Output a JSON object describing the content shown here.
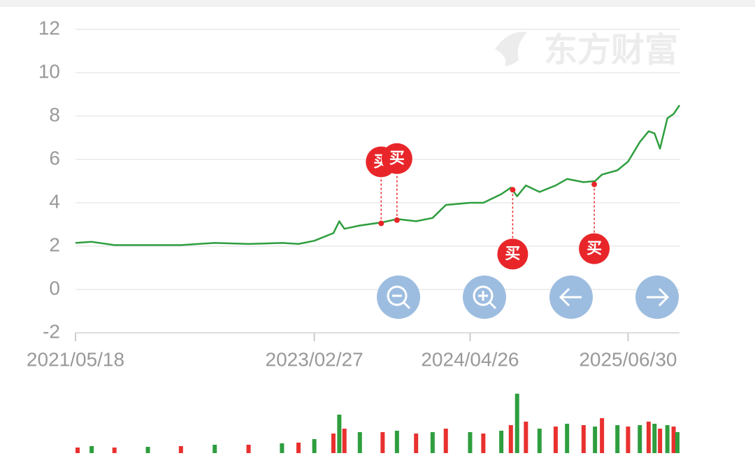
{
  "chart_data": [
    {
      "type": "line",
      "watermark": "东方财富",
      "x": [
        "2021/05/18",
        "2021/07/01",
        "2021/09/01",
        "2021/12/01",
        "2022/03/01",
        "2022/06/01",
        "2022/09/01",
        "2022/12/01",
        "2023/01/15",
        "2023/02/27",
        "2023/04/20",
        "2023/05/06",
        "2023/05/20",
        "2023/07/01",
        "2023/09/01",
        "2023/10/10",
        "2023/12/01",
        "2024/01/15",
        "2024/02/20",
        "2024/04/26",
        "2024/06/01",
        "2024/07/20",
        "2024/08/15",
        "2024/09/01",
        "2024/09/25",
        "2024/11/01",
        "2024/12/15",
        "2025/01/15",
        "2025/03/01",
        "2025/04/01",
        "2025/04/20",
        "2025/06/01",
        "2025/06/30",
        "2025/08/01",
        "2025/08/25",
        "2025/09/10",
        "2025/09/25",
        "2025/10/15",
        "2025/11/01",
        "2025/11/17"
      ],
      "series": [
        {
          "color": "#2e9e3e",
          "values": [
            2.15,
            2.2,
            2.05,
            2.05,
            2.05,
            2.15,
            2.1,
            2.15,
            2.1,
            2.25,
            2.6,
            3.15,
            2.8,
            2.95,
            3.1,
            3.25,
            3.15,
            3.3,
            3.9,
            4.0,
            4.0,
            4.4,
            4.7,
            4.3,
            4.8,
            4.5,
            4.8,
            5.1,
            4.95,
            5.0,
            5.3,
            5.5,
            5.9,
            6.8,
            7.3,
            7.2,
            6.5,
            7.9,
            8.1,
            8.5
          ]
        }
      ],
      "xlim": [
        "2021/05/18",
        "2025/11/17"
      ],
      "xticks": [
        "2021/05/18",
        "2023/02/27",
        "2024/04/26",
        "2025/06/30"
      ],
      "ylim": [
        -2,
        12
      ],
      "yticks": [
        -2,
        0,
        2,
        4,
        6,
        8,
        10,
        12
      ],
      "grid": true,
      "markers": [
        {
          "x": "2023/08/28",
          "y": 3.05,
          "label": "买",
          "position": "above"
        },
        {
          "x": "2023/10/10",
          "y": 3.2,
          "label": "买",
          "position": "above"
        },
        {
          "x": "2024/08/20",
          "y": 4.6,
          "label": "买",
          "position": "below"
        },
        {
          "x": "2025/03/30",
          "y": 4.85,
          "label": "买",
          "position": "below"
        }
      ],
      "marker_color": "#e8262a"
    },
    {
      "type": "bar",
      "x": [
        "2021/05/18",
        "2021/07/01",
        "2021/09/01",
        "2021/12/01",
        "2022/03/01",
        "2022/06/01",
        "2022/09/01",
        "2022/12/01",
        "2023/01/15",
        "2023/02/27",
        "2023/04/20",
        "2023/05/06",
        "2023/05/20",
        "2023/07/01",
        "2023/09/01",
        "2023/10/10",
        "2023/12/01",
        "2024/01/15",
        "2024/02/20",
        "2024/04/26",
        "2024/06/01",
        "2024/07/20",
        "2024/08/15",
        "2024/09/01",
        "2024/09/25",
        "2024/11/01",
        "2024/12/15",
        "2025/01/15",
        "2025/03/01",
        "2025/04/01",
        "2025/04/20",
        "2025/06/01",
        "2025/06/30",
        "2025/08/01",
        "2025/08/25",
        "2025/09/10",
        "2025/09/25",
        "2025/10/15",
        "2025/11/01",
        "2025/11/17"
      ],
      "values": [
        8,
        10,
        8,
        9,
        10,
        12,
        12,
        14,
        15,
        20,
        28,
        55,
        35,
        30,
        30,
        32,
        28,
        30,
        35,
        30,
        28,
        32,
        40,
        85,
        45,
        35,
        38,
        42,
        40,
        38,
        50,
        40,
        38,
        40,
        45,
        42,
        35,
        40,
        38,
        30
      ],
      "colors": [
        "#e8312f",
        "#2e9e3e",
        "#e8312f",
        "#2e9e3e",
        "#e8312f",
        "#2e9e3e",
        "#e8312f",
        "#2e9e3e",
        "#e8312f",
        "#2e9e3e",
        "#e8312f",
        "#2e9e3e",
        "#e8312f",
        "#2e9e3e",
        "#e8312f",
        "#2e9e3e",
        "#e8312f",
        "#2e9e3e",
        "#e8312f",
        "#2e9e3e",
        "#e8312f",
        "#2e9e3e",
        "#e8312f",
        "#2e9e3e",
        "#e8312f",
        "#2e9e3e",
        "#e8312f",
        "#2e9e3e",
        "#e8312f",
        "#2e9e3e",
        "#e8312f",
        "#2e9e3e",
        "#e8312f",
        "#2e9e3e",
        "#e8312f",
        "#2e9e3e",
        "#e8312f",
        "#2e9e3e",
        "#e8312f",
        "#2e9e3e"
      ],
      "xlim": [
        "2021/05/18",
        "2025/11/17"
      ],
      "ylim": [
        0,
        100
      ]
    }
  ]
}
